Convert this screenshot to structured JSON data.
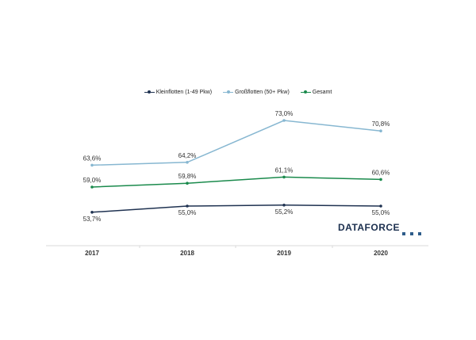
{
  "chart_data": {
    "type": "line",
    "categories": [
      "2017",
      "2018",
      "2019",
      "2020"
    ],
    "ylim": [
      50,
      76
    ],
    "grid": false,
    "legend_position": "top-center",
    "series": [
      {
        "name": "Kleinflotten (1-49 Pkw)",
        "color": "#1f3251",
        "values": [
          53.7,
          55.0,
          55.2,
          55.0
        ],
        "labels": [
          "53,7%",
          "55,0%",
          "55,2%",
          "55,0%"
        ],
        "label_position": "below"
      },
      {
        "name": "Großflotten (50+ Pkw)",
        "color": "#87b7d1",
        "values": [
          63.6,
          64.2,
          73.0,
          70.8
        ],
        "labels": [
          "63,6%",
          "64,2%",
          "73,0%",
          "70,8%"
        ],
        "label_position": "above"
      },
      {
        "name": "Gesamt",
        "color": "#1a8a4c",
        "values": [
          59.0,
          59.8,
          61.1,
          60.6
        ],
        "labels": [
          "59,0%",
          "59,8%",
          "61,1%",
          "60,6%"
        ],
        "label_position": "above"
      }
    ]
  },
  "branding": {
    "logo_text": "DATAFORCE",
    "logo_color": "#1b2f4e",
    "accent_color": "#2e5c8a"
  }
}
